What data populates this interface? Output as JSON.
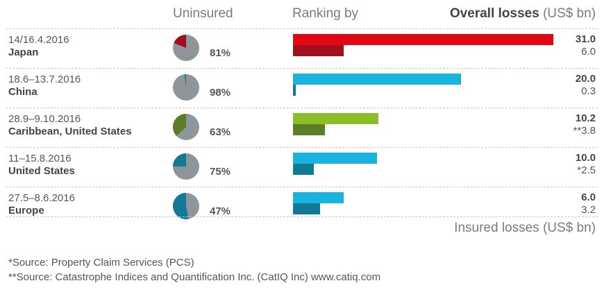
{
  "header": {
    "uninsured": "Uninsured",
    "ranking_prefix": "Ranking by",
    "overall_bold": "Overall losses",
    "overall_unit": "(US$ bn)"
  },
  "insured_label": "Insured losses (US$ bn)",
  "sources": [
    "*Source: Property Claim Services (PCS)",
    "**Source: Catastrophe Indices and Quantification Inc. (CatIQ Inc) www.catiq.com"
  ],
  "colors": {
    "pie_grey": "#8f969b",
    "bar_grey_bg": "#ffffff"
  },
  "chart_data": {
    "type": "bar",
    "orientation": "horizontal",
    "x_max": 31.0,
    "categories": [
      "Japan",
      "China",
      "Caribbean, United States",
      "United States",
      "Europe"
    ],
    "rows": [
      {
        "date": "14/16.4.2016",
        "region": "Japan",
        "uninsured_pct": 81,
        "uninsured_label": "81%",
        "overall": 31.0,
        "overall_label": "31.0",
        "insured": 6.0,
        "insured_label": "6.0",
        "color_overall": "#e30613",
        "color_insured": "#a20f1c"
      },
      {
        "date": "18.6–13.7.2016",
        "region": "China",
        "uninsured_pct": 98,
        "uninsured_label": "98%",
        "overall": 20.0,
        "overall_label": "20.0",
        "insured": 0.3,
        "insured_label": "0.3",
        "color_overall": "#19b3e0",
        "color_insured": "#127a94"
      },
      {
        "date": "28.9–9.10.2016",
        "region": "Caribbean, United States",
        "uninsured_pct": 63,
        "uninsured_label": "63%",
        "overall": 10.2,
        "overall_label": "10.2",
        "insured": 3.8,
        "insured_label": "**3.8",
        "color_overall": "#8cbf26",
        "color_insured": "#5a7d25"
      },
      {
        "date": "11–15.8.2016",
        "region": "United States",
        "uninsured_pct": 75,
        "uninsured_label": "75%",
        "overall": 10.0,
        "overall_label": "10.0",
        "insured": 2.5,
        "insured_label": "*2.5",
        "color_overall": "#19b3e0",
        "color_insured": "#127a94"
      },
      {
        "date": "27.5–8.6.2016",
        "region": "Europe",
        "uninsured_pct": 47,
        "uninsured_label": "47%",
        "overall": 6.0,
        "overall_label": "6.0",
        "insured": 3.2,
        "insured_label": "3.2",
        "color_overall": "#19b3e0",
        "color_insured": "#127a94"
      }
    ]
  }
}
